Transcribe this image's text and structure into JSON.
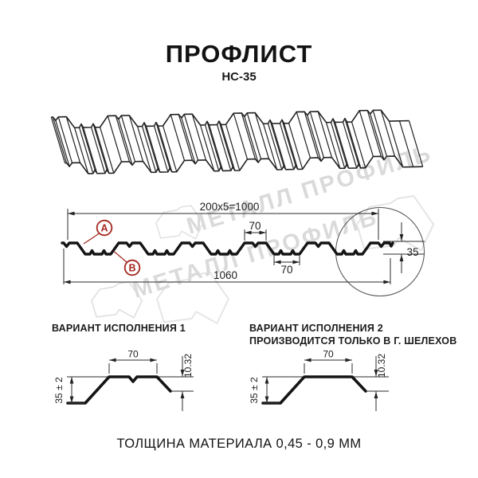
{
  "title": "ПРОФЛИСТ",
  "subtitle": "НС-35",
  "watermark": {
    "brand_text": "МЕТАЛЛ ПРОФИЛЬ"
  },
  "section": {
    "dim_coverage": "200x5=1000",
    "dim_rib_top": "70",
    "dim_rib_bottom": "70",
    "dim_overall": "1060",
    "dim_height": "35",
    "callout_a": "А",
    "callout_b": "В"
  },
  "variants": [
    {
      "heading_line1": "ВАРИАНТ ИСПОЛНЕНИЯ 1",
      "heading_line2": "",
      "dim_top": "70",
      "dim_lip": "10.32",
      "dim_height": "35 ± 2"
    },
    {
      "heading_line1": "ВАРИАНТ ИСПОЛНЕНИЯ 2",
      "heading_line2": "ПРОИЗВОДИТСЯ ТОЛЬКО В Г. ШЕЛЕХОВ",
      "dim_top": "70",
      "dim_lip": "10.32",
      "dim_height": "35 ± 2"
    }
  ],
  "footer": "ТОЛЩИНА МАТЕРИАЛА 0,45 - 0,9 ММ",
  "colors": {
    "callout_red": "#A3281E",
    "line": "#1c1c1c",
    "watermark_gray": "#dadada"
  }
}
